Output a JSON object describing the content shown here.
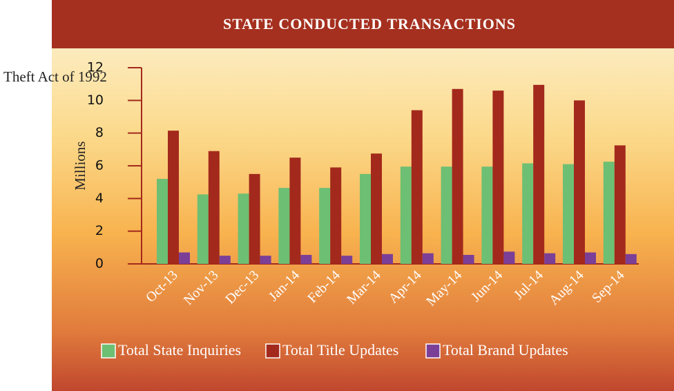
{
  "chart_data": {
    "type": "bar",
    "title": "STATE CONDUCTED TRANSACTIONS",
    "annotation": "Theft Act of 1992",
    "y_label": "Millions",
    "categories": [
      "Oct-13",
      "Nov-13",
      "Dec-13",
      "Jan-14",
      "Feb-14",
      "Mar-14",
      "Apr-14",
      "May-14",
      "Jun-14",
      "Jul-14",
      "Aug-14",
      "Sep-14"
    ],
    "series": [
      {
        "name": "Total State Inquiries",
        "color": "#6dbf73",
        "values": [
          5.2,
          4.25,
          4.3,
          4.65,
          4.65,
          5.5,
          5.95,
          5.95,
          5.95,
          6.15,
          6.1,
          6.25
        ]
      },
      {
        "name": "Total Title Updates",
        "color": "#a3291c",
        "values": [
          8.15,
          6.9,
          5.5,
          6.5,
          5.9,
          6.75,
          9.4,
          10.7,
          10.6,
          10.95,
          10.0,
          7.25
        ]
      },
      {
        "name": "Total Brand Updates",
        "color": "#7b3f98",
        "values": [
          0.7,
          0.5,
          0.5,
          0.55,
          0.5,
          0.6,
          0.65,
          0.55,
          0.75,
          0.65,
          0.7,
          0.6
        ]
      }
    ],
    "ylim": [
      0,
      12
    ],
    "yticks": [
      0,
      2,
      4,
      6,
      8,
      10,
      12
    ]
  }
}
